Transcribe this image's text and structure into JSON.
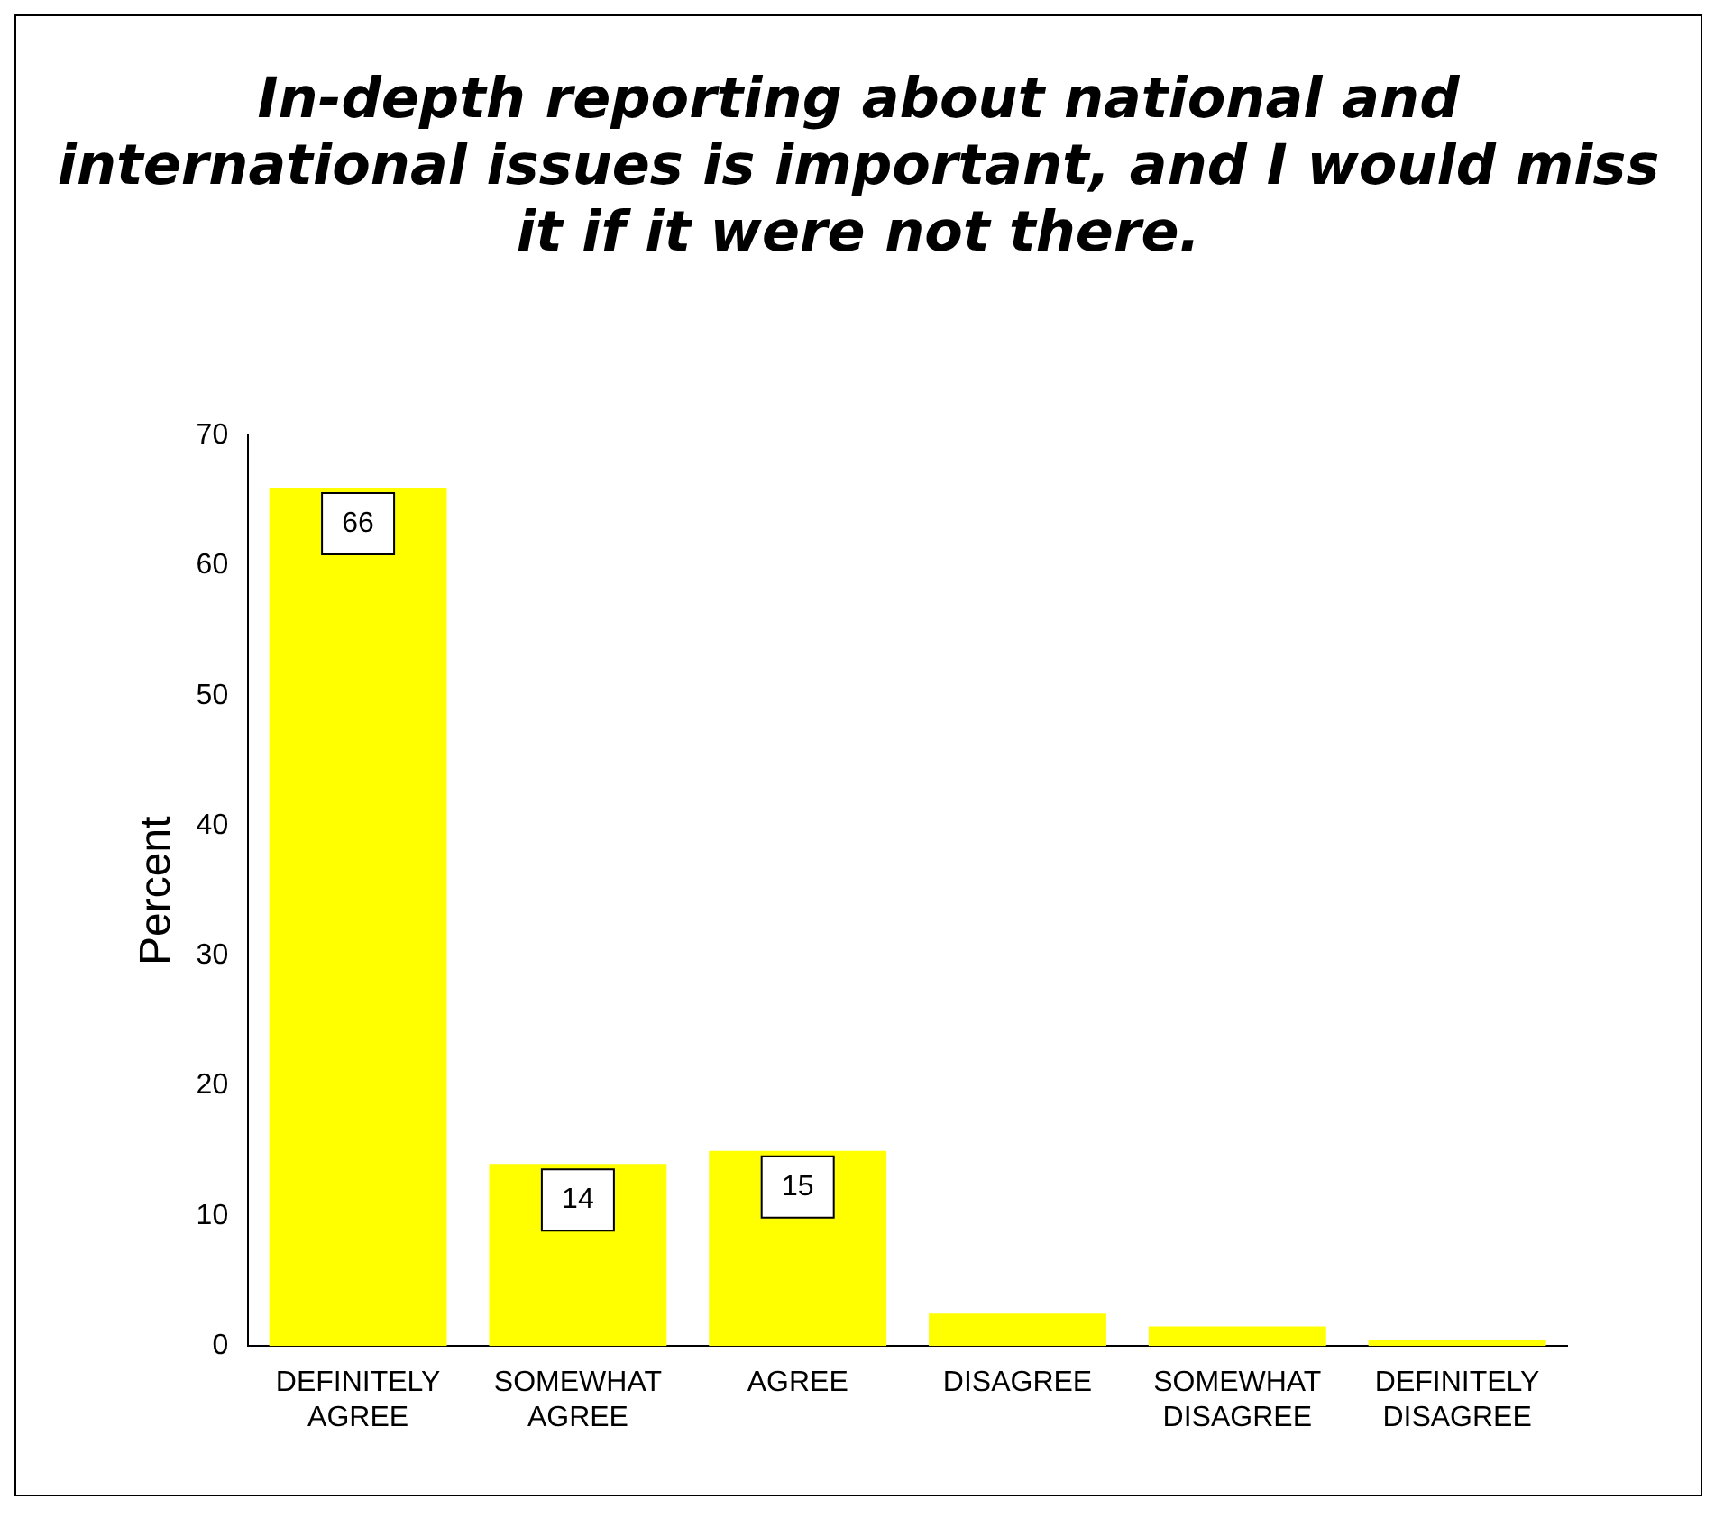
{
  "chart_data": {
    "type": "bar",
    "title": "In-depth reporting about national and international issues is important, and I would miss it if it were not there.",
    "ylabel": "Percent",
    "categories": [
      "DEFINITELY AGREE",
      "SOMEWHAT AGREE",
      "AGREE",
      "DISAGREE",
      "SOMEWHAT DISAGREE",
      "DEFINITELY DISAGREE"
    ],
    "values": [
      66,
      14,
      15,
      2.5,
      1.5,
      0.5
    ],
    "value_labels": [
      "66",
      "14",
      "15",
      null,
      null,
      null
    ],
    "color": "#ffff00",
    "ylim": [
      0,
      70
    ],
    "yticks": [
      0,
      10,
      20,
      30,
      40,
      50,
      60,
      70
    ],
    "grid": false,
    "legend": false
  }
}
